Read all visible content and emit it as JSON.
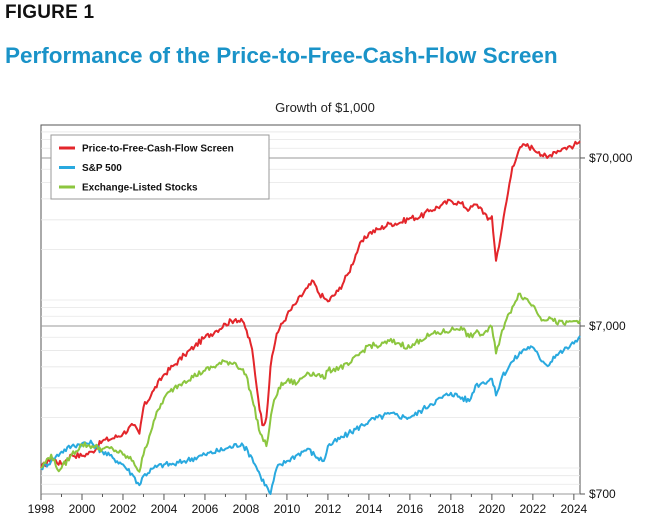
{
  "figure": {
    "label": "FIGURE 1",
    "title": "Performance of the Price-to-Free-Cash-Flow Screen"
  },
  "chart_data": {
    "type": "line",
    "title": "Growth of $1,000",
    "xlabel": "",
    "ylabel": "",
    "y_scale": "log",
    "ylim": [
      700,
      110000
    ],
    "xlim": [
      1998,
      2024.3
    ],
    "x_ticks": [
      "1998",
      "2000",
      "2002",
      "2004",
      "2006",
      "2008",
      "2010",
      "2012",
      "2014",
      "2016",
      "2018",
      "2020",
      "2022",
      "2024"
    ],
    "y_ticks": [
      {
        "value": 700,
        "label": "$700"
      },
      {
        "value": 7000,
        "label": "$7,000"
      },
      {
        "value": 70000,
        "label": "$70,000"
      }
    ],
    "grid": "horizontal",
    "legend_position": "top-left",
    "series": [
      {
        "name": "Price-to-Free-Cash-Flow Screen",
        "color": "#e3262b",
        "x": [
          1998.0,
          1998.5,
          1999.0,
          1999.5,
          2000.0,
          2000.5,
          2001.0,
          2001.5,
          2002.0,
          2002.5,
          2002.8,
          2003.0,
          2003.5,
          2004.0,
          2004.5,
          2005.0,
          2005.5,
          2006.0,
          2006.5,
          2007.0,
          2007.5,
          2007.9,
          2008.3,
          2008.6,
          2008.8,
          2009.0,
          2009.2,
          2009.5,
          2010.0,
          2010.5,
          2011.0,
          2011.3,
          2011.5,
          2011.8,
          2012.0,
          2012.5,
          2013.0,
          2013.5,
          2014.0,
          2014.5,
          2015.0,
          2015.5,
          2016.0,
          2016.5,
          2017.0,
          2017.5,
          2018.0,
          2018.5,
          2018.9,
          2019.2,
          2019.5,
          2019.8,
          2020.0,
          2020.2,
          2020.5,
          2021.0,
          2021.3,
          2021.6,
          2022.0,
          2022.3,
          2022.7,
          2023.0,
          2023.5,
          2024.0,
          2024.3
        ],
        "y": [
          1000,
          1150,
          1050,
          1200,
          1180,
          1250,
          1450,
          1500,
          1600,
          1800,
          1600,
          2300,
          2900,
          3600,
          4100,
          4700,
          5300,
          6000,
          6500,
          7200,
          7700,
          7300,
          5100,
          2600,
          1800,
          2000,
          4000,
          6300,
          8100,
          9800,
          11800,
          12900,
          11200,
          10300,
          9800,
          11300,
          14400,
          20600,
          25000,
          26400,
          28400,
          28800,
          30700,
          31200,
          34200,
          36400,
          39000,
          37500,
          34500,
          37000,
          35000,
          30000,
          31500,
          17100,
          27000,
          62000,
          77000,
          84000,
          80000,
          76000,
          70000,
          76000,
          80000,
          83000,
          88000
        ]
      },
      {
        "name": "S&P 500",
        "color": "#29a9df",
        "x": [
          1998.0,
          1998.5,
          1999.0,
          1999.5,
          2000.0,
          2000.5,
          2001.0,
          2001.5,
          2002.0,
          2002.5,
          2002.8,
          2003.0,
          2003.5,
          2004.0,
          2004.5,
          2005.0,
          2006.0,
          2007.0,
          2007.8,
          2008.3,
          2008.7,
          2009.2,
          2009.5,
          2010.0,
          2010.5,
          2011.0,
          2011.5,
          2011.8,
          2012.0,
          2013.0,
          2014.0,
          2015.0,
          2015.8,
          2016.2,
          2017.0,
          2018.0,
          2018.9,
          2019.2,
          2019.5,
          2020.0,
          2020.2,
          2020.5,
          2021.0,
          2021.5,
          2021.9,
          2022.5,
          2022.8,
          2023.0,
          2023.5,
          2024.0,
          2024.3
        ],
        "y": [
          1000,
          1100,
          1250,
          1350,
          1400,
          1400,
          1250,
          1150,
          1050,
          900,
          790,
          900,
          1000,
          1050,
          1050,
          1100,
          1200,
          1300,
          1400,
          1150,
          900,
          700,
          1000,
          1100,
          1200,
          1300,
          1150,
          1100,
          1350,
          1600,
          1900,
          2100,
          2000,
          2050,
          2400,
          2800,
          2500,
          3100,
          3200,
          3400,
          2700,
          3500,
          4300,
          5000,
          5300,
          4300,
          4100,
          4600,
          5000,
          5500,
          6100
        ]
      },
      {
        "name": "Exchange-Listed Stocks",
        "color": "#8cc63f",
        "x": [
          1998.0,
          1998.5,
          1998.8,
          1999.0,
          1999.5,
          2000.0,
          2000.5,
          2001.0,
          2001.5,
          2002.0,
          2002.5,
          2002.8,
          2003.0,
          2003.5,
          2004.0,
          2004.5,
          2005.0,
          2006.0,
          2007.0,
          2007.5,
          2008.0,
          2008.3,
          2008.7,
          2009.0,
          2009.3,
          2009.6,
          2010.0,
          2010.5,
          2011.0,
          2011.5,
          2011.8,
          2012.0,
          2013.0,
          2014.0,
          2014.5,
          2015.0,
          2015.5,
          2016.0,
          2016.5,
          2017.0,
          2018.0,
          2018.5,
          2018.9,
          2019.2,
          2019.5,
          2020.0,
          2020.2,
          2020.5,
          2021.0,
          2021.3,
          2021.6,
          2022.0,
          2022.5,
          2022.8,
          2023.0,
          2023.5,
          2024.0,
          2024.3
        ],
        "y": [
          1000,
          1200,
          980,
          1000,
          1200,
          1380,
          1350,
          1300,
          1300,
          1200,
          1100,
          950,
          1200,
          1900,
          2600,
          3000,
          3300,
          3800,
          4300,
          4200,
          3600,
          2600,
          1600,
          1350,
          2300,
          3000,
          3300,
          3200,
          3700,
          3600,
          3400,
          3800,
          4100,
          5400,
          5300,
          5700,
          5500,
          5200,
          5800,
          6200,
          6600,
          6900,
          6000,
          6400,
          6200,
          6900,
          4800,
          6600,
          9100,
          10900,
          10300,
          9300,
          7600,
          7900,
          7500,
          7200,
          7500,
          7600
        ]
      }
    ]
  }
}
